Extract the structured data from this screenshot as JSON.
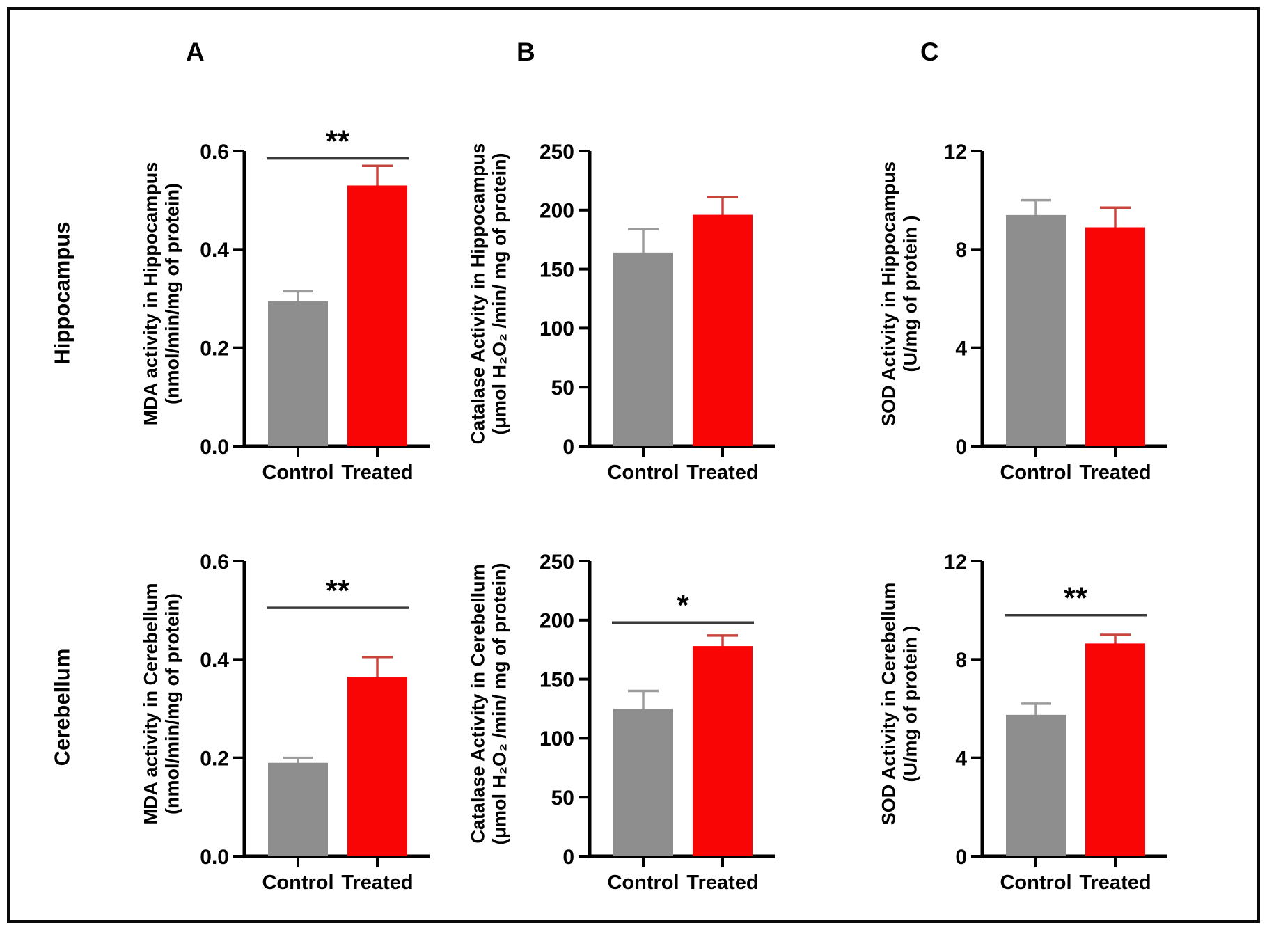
{
  "figure": {
    "panel_letters": [
      "A",
      "B",
      "C"
    ],
    "row_labels": [
      "Hippocampus",
      "Cerebellum"
    ],
    "categories": [
      "Control",
      "Treated"
    ],
    "colors": {
      "control_bar": "#8E8E8E",
      "control_error": "#9C9C9C",
      "treated_bar": "#FA0505",
      "treated_error": "#C9443E",
      "sig_line": "#3A3A3A",
      "axis": "#000000"
    }
  },
  "chart_data": [
    {
      "id": "mda-hippocampus",
      "panel": "A",
      "region": "Hippocampus",
      "type": "bar",
      "ylabel_lines": [
        "MDA activity in Hippocampus",
        "(nmol/min/mg of protein)"
      ],
      "categories": [
        "Control",
        "Treated"
      ],
      "series": [
        {
          "name": "Control",
          "value": 0.295,
          "error_top": 0.315
        },
        {
          "name": "Treated",
          "value": 0.53,
          "error_top": 0.57
        }
      ],
      "ylim": [
        0,
        0.6
      ],
      "yticks": [
        0,
        0.2,
        0.4,
        0.6
      ],
      "ytick_labels": [
        "0.0",
        "0.2",
        "0.4",
        "0.6"
      ],
      "significance": {
        "label": "**",
        "y": 0.585
      }
    },
    {
      "id": "catalase-hippocampus",
      "panel": "B",
      "region": "Hippocampus",
      "type": "bar",
      "ylabel_lines": [
        "Catalase Activity in Hippocampus",
        "(μmol H₂O₂ /min/ mg of protein)"
      ],
      "categories": [
        "Control",
        "Treated"
      ],
      "series": [
        {
          "name": "Control",
          "value": 164,
          "error_top": 184
        },
        {
          "name": "Treated",
          "value": 196,
          "error_top": 211
        }
      ],
      "ylim": [
        0,
        250
      ],
      "yticks": [
        0,
        50,
        100,
        150,
        200,
        250
      ],
      "ytick_labels": [
        "0",
        "50",
        "100",
        "150",
        "200",
        "250"
      ],
      "significance": null
    },
    {
      "id": "sod-hippocampus",
      "panel": "C",
      "region": "Hippocampus",
      "type": "bar",
      "ylabel_lines": [
        "SOD Activity in Hippocampus",
        "(U/mg of protein )"
      ],
      "categories": [
        "Control",
        "Treated"
      ],
      "series": [
        {
          "name": "Control",
          "value": 9.4,
          "error_top": 10.0
        },
        {
          "name": "Treated",
          "value": 8.9,
          "error_top": 9.7
        }
      ],
      "ylim": [
        0,
        12
      ],
      "yticks": [
        0,
        4,
        8,
        12
      ],
      "ytick_labels": [
        "0",
        "4",
        "8",
        "12"
      ],
      "significance": null
    },
    {
      "id": "mda-cerebellum",
      "panel": "A",
      "region": "Cerebellum",
      "type": "bar",
      "ylabel_lines": [
        "MDA activity in Cerebellum",
        "(nmol/min/mg of protein)"
      ],
      "categories": [
        "Control",
        "Treated"
      ],
      "series": [
        {
          "name": "Control",
          "value": 0.19,
          "error_top": 0.2
        },
        {
          "name": "Treated",
          "value": 0.365,
          "error_top": 0.405
        }
      ],
      "ylim": [
        0,
        0.6
      ],
      "yticks": [
        0,
        0.2,
        0.4,
        0.6
      ],
      "ytick_labels": [
        "0.0",
        "0.2",
        "0.4",
        "0.6"
      ],
      "significance": {
        "label": "**",
        "y": 0.505
      }
    },
    {
      "id": "catalase-cerebellum",
      "panel": "B",
      "region": "Cerebellum",
      "type": "bar",
      "ylabel_lines": [
        "Catalase Activity in Cerebellum",
        "(μmol H₂O₂ /min/ mg of protein)"
      ],
      "categories": [
        "Control",
        "Treated"
      ],
      "series": [
        {
          "name": "Control",
          "value": 125,
          "error_top": 140
        },
        {
          "name": "Treated",
          "value": 178,
          "error_top": 187
        }
      ],
      "ylim": [
        0,
        250
      ],
      "yticks": [
        0,
        50,
        100,
        150,
        200,
        250
      ],
      "ytick_labels": [
        "0",
        "50",
        "100",
        "150",
        "200",
        "250"
      ],
      "significance": {
        "label": "*",
        "y": 198
      }
    },
    {
      "id": "sod-cerebellum",
      "panel": "C",
      "region": "Cerebellum",
      "type": "bar",
      "ylabel_lines": [
        "SOD Activity in Cerebellum",
        "(U/mg of protein )"
      ],
      "categories": [
        "Control",
        "Treated"
      ],
      "series": [
        {
          "name": "Control",
          "value": 5.75,
          "error_top": 6.2
        },
        {
          "name": "Treated",
          "value": 8.65,
          "error_top": 9.0
        }
      ],
      "ylim": [
        0,
        12
      ],
      "yticks": [
        0,
        4,
        8,
        12
      ],
      "ytick_labels": [
        "0",
        "4",
        "8",
        "12"
      ],
      "significance": {
        "label": "**",
        "y": 9.8
      }
    }
  ]
}
